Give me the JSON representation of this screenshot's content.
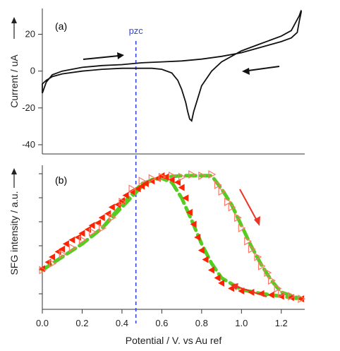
{
  "chart_data": [
    {
      "panel": "a",
      "type": "line",
      "panel_label": "(a)",
      "ylabel": "Current / uA",
      "xlim": [
        0,
        1.3
      ],
      "ylim": [
        -45,
        34
      ],
      "yticks": [
        -40,
        -20,
        0,
        20
      ],
      "annotation": "pzc",
      "pzc_x": 0.47,
      "colors": {
        "trace": "#111111",
        "arrow": "#111111",
        "pzc": "#3344dd"
      },
      "series": [
        {
          "name": "",
          "x": [
            0.0,
            0.02,
            0.05,
            0.1,
            0.2,
            0.3,
            0.4,
            0.5,
            0.6,
            0.7,
            0.8,
            0.9,
            1.0,
            1.1,
            1.2,
            1.25,
            1.28,
            1.29,
            1.3,
            1.3,
            1.29,
            1.25,
            1.2,
            1.1,
            1.0,
            0.9,
            0.85,
            0.8,
            0.78,
            0.76,
            0.75,
            0.74,
            0.73,
            0.72,
            0.7,
            0.68,
            0.65,
            0.6,
            0.55,
            0.5,
            0.4,
            0.3,
            0.2,
            0.1,
            0.05,
            0.02,
            0.0
          ],
          "y": [
            -12,
            -6,
            -2,
            0,
            2,
            3,
            3.5,
            4.5,
            5,
            5.5,
            6.5,
            8,
            10,
            13,
            16,
            18,
            21,
            27,
            32,
            33,
            30,
            22,
            19,
            15,
            11,
            5,
            0,
            -8,
            -15,
            -22,
            -27,
            -26,
            -22,
            -17,
            -10,
            -5,
            -1,
            1,
            1.5,
            1.5,
            1.5,
            1,
            0,
            -1.5,
            -3,
            -5,
            -7
          ]
        }
      ]
    },
    {
      "panel": "b",
      "type": "scatter",
      "panel_label": "(b)",
      "ylabel": "SFG intensity / a.u.",
      "xlabel": "Potential / V. vs Au ref",
      "xlim": [
        0,
        1.3
      ],
      "xticks": [
        "0.0",
        "0.2",
        "0.4",
        "0.6",
        "0.8",
        "1.0",
        "1.2"
      ],
      "ylim": [
        0,
        1.1
      ],
      "colors": {
        "filled": "#ff2200",
        "open": "#ff7766",
        "fit": "#55cc22",
        "arrow": "#ee3322"
      },
      "series": [
        {
          "name": "",
          "marker": "filled-triangle",
          "x": [
            0.0,
            0.03,
            0.05,
            0.08,
            0.1,
            0.12,
            0.15,
            0.18,
            0.2,
            0.23,
            0.25,
            0.28,
            0.3,
            0.33,
            0.35,
            0.38,
            0.4,
            0.42,
            0.45,
            0.48,
            0.5,
            0.52,
            0.55,
            0.58,
            0.6,
            0.62,
            0.65,
            0.68,
            0.7,
            0.72,
            0.74,
            0.76,
            0.78,
            0.8,
            0.82,
            0.85,
            0.88,
            0.9,
            0.95,
            1.0,
            1.05,
            1.1,
            1.15,
            1.2,
            1.25,
            1.3
          ],
          "y": [
            0.31,
            0.36,
            0.4,
            0.44,
            0.46,
            0.5,
            0.53,
            0.55,
            0.58,
            0.61,
            0.64,
            0.66,
            0.7,
            0.73,
            0.78,
            0.8,
            0.83,
            0.87,
            0.9,
            0.92,
            0.94,
            0.96,
            0.98,
            1.0,
            1.02,
            1.01,
            0.99,
            0.97,
            0.93,
            0.85,
            0.74,
            0.65,
            0.55,
            0.45,
            0.38,
            0.3,
            0.24,
            0.2,
            0.16,
            0.14,
            0.13,
            0.12,
            0.11,
            0.1,
            0.09,
            0.08
          ]
        },
        {
          "name": "",
          "marker": "open-triangle",
          "x": [
            0.0,
            0.05,
            0.1,
            0.15,
            0.2,
            0.25,
            0.3,
            0.35,
            0.4,
            0.45,
            0.5,
            0.55,
            0.6,
            0.65,
            0.7,
            0.75,
            0.8,
            0.85,
            0.88,
            0.9,
            0.93,
            0.95,
            0.98,
            1.0,
            1.03,
            1.05,
            1.08,
            1.1,
            1.13,
            1.15,
            1.18,
            1.2,
            1.25,
            1.3
          ],
          "y": [
            0.3,
            0.35,
            0.42,
            0.47,
            0.53,
            0.59,
            0.62,
            0.7,
            0.82,
            0.92,
            0.98,
            1.0,
            1.01,
            1.02,
            1.01,
            1.03,
            1.02,
            1.03,
            0.95,
            0.9,
            0.82,
            0.78,
            0.7,
            0.62,
            0.52,
            0.46,
            0.4,
            0.33,
            0.28,
            0.22,
            0.16,
            0.12,
            0.1,
            0.08
          ]
        },
        {
          "name": "",
          "marker": "fit-filled",
          "x": [
            0.0,
            0.1,
            0.2,
            0.3,
            0.4,
            0.5,
            0.55,
            0.6,
            0.65,
            0.7,
            0.75,
            0.8,
            0.85,
            0.9,
            1.0,
            1.1,
            1.2,
            1.3
          ],
          "y": [
            0.3,
            0.4,
            0.5,
            0.62,
            0.78,
            0.94,
            0.99,
            1.0,
            0.97,
            0.85,
            0.68,
            0.5,
            0.35,
            0.24,
            0.15,
            0.12,
            0.1,
            0.08
          ]
        },
        {
          "name": "",
          "marker": "fit-open",
          "x": [
            0.0,
            0.1,
            0.2,
            0.3,
            0.4,
            0.5,
            0.6,
            0.7,
            0.8,
            0.85,
            0.9,
            0.95,
            1.0,
            1.05,
            1.1,
            1.15,
            1.2,
            1.3
          ],
          "y": [
            0.3,
            0.4,
            0.5,
            0.62,
            0.8,
            0.96,
            1.01,
            1.02,
            1.02,
            1.02,
            0.92,
            0.8,
            0.64,
            0.48,
            0.34,
            0.22,
            0.13,
            0.08
          ]
        }
      ]
    }
  ]
}
